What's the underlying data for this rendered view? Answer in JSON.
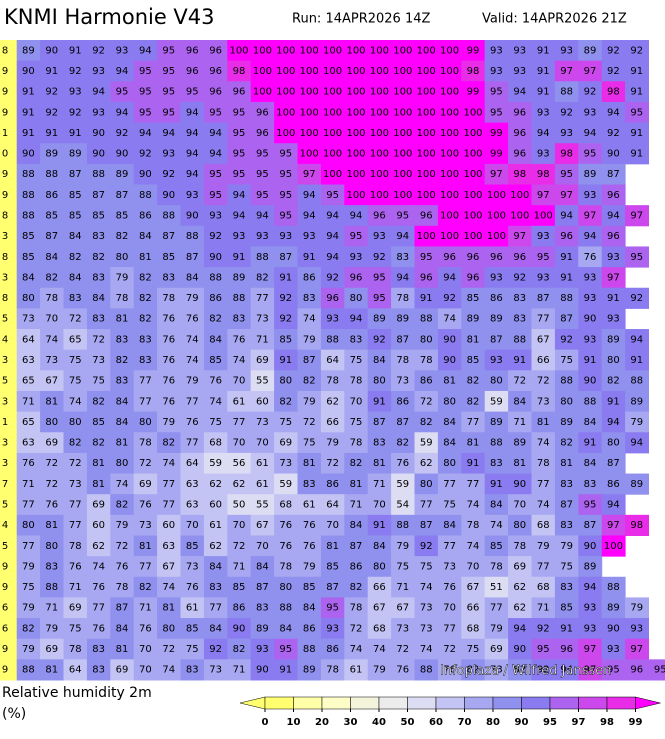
{
  "header": {
    "title": "KNMI Harmonie V43",
    "run": "Run: 14APR2026 14Z",
    "valid": "Valid: 14APR2026 21Z"
  },
  "grid": {
    "rows": [
      [
        8,
        89,
        90,
        91,
        92,
        93,
        94,
        95,
        96,
        96,
        100,
        100,
        100,
        100,
        100,
        100,
        100,
        100,
        100,
        100,
        99,
        93,
        93,
        91,
        93,
        89,
        92,
        92
      ],
      [
        9,
        90,
        91,
        92,
        93,
        94,
        95,
        95,
        96,
        96,
        98,
        100,
        100,
        100,
        100,
        100,
        100,
        100,
        100,
        100,
        98,
        93,
        93,
        91,
        97,
        97,
        92,
        91
      ],
      [
        9,
        91,
        92,
        93,
        94,
        95,
        95,
        95,
        95,
        96,
        96,
        100,
        100,
        100,
        100,
        100,
        100,
        100,
        100,
        100,
        99,
        95,
        94,
        91,
        88,
        92,
        98,
        91
      ],
      [
        9,
        91,
        92,
        92,
        93,
        94,
        95,
        95,
        94,
        95,
        95,
        96,
        100,
        100,
        100,
        100,
        100,
        100,
        100,
        100,
        100,
        95,
        96,
        93,
        92,
        93,
        94,
        95
      ],
      [
        1,
        91,
        91,
        91,
        90,
        92,
        94,
        94,
        94,
        94,
        95,
        96,
        100,
        100,
        100,
        100,
        100,
        100,
        100,
        100,
        100,
        99,
        96,
        94,
        93,
        94,
        92,
        91
      ],
      [
        0,
        90,
        89,
        89,
        90,
        90,
        92,
        93,
        94,
        94,
        95,
        95,
        95,
        100,
        100,
        100,
        100,
        100,
        100,
        100,
        100,
        99,
        96,
        93,
        98,
        95,
        90,
        91
      ],
      [
        9,
        88,
        88,
        87,
        88,
        89,
        90,
        92,
        94,
        95,
        95,
        95,
        95,
        97,
        100,
        100,
        100,
        100,
        100,
        100,
        100,
        97,
        98,
        98,
        95,
        89,
        87
      ],
      [
        9,
        88,
        86,
        85,
        87,
        87,
        88,
        90,
        93,
        95,
        94,
        95,
        95,
        94,
        95,
        100,
        100,
        100,
        100,
        100,
        100,
        100,
        100,
        97,
        97,
        93,
        96
      ],
      [
        8,
        88,
        85,
        85,
        85,
        85,
        86,
        88,
        90,
        93,
        94,
        94,
        95,
        94,
        94,
        94,
        96,
        95,
        96,
        100,
        100,
        100,
        100,
        100,
        94,
        97,
        94,
        97
      ],
      [
        3,
        85,
        87,
        84,
        83,
        82,
        84,
        87,
        88,
        92,
        93,
        93,
        93,
        93,
        94,
        95,
        93,
        94,
        100,
        100,
        100,
        100,
        97,
        93,
        96,
        94,
        96
      ],
      [
        8,
        85,
        84,
        82,
        82,
        80,
        81,
        85,
        87,
        90,
        91,
        88,
        87,
        91,
        94,
        93,
        92,
        83,
        95,
        96,
        96,
        96,
        96,
        95,
        91,
        76,
        93,
        95
      ],
      [
        3,
        84,
        82,
        84,
        83,
        79,
        82,
        83,
        84,
        88,
        89,
        82,
        91,
        86,
        92,
        96,
        95,
        94,
        96,
        94,
        96,
        93,
        92,
        93,
        91,
        93,
        97
      ],
      [
        8,
        80,
        78,
        83,
        84,
        78,
        82,
        78,
        79,
        86,
        88,
        77,
        92,
        83,
        96,
        80,
        95,
        78,
        91,
        92,
        85,
        86,
        83,
        87,
        88,
        93,
        91,
        92
      ],
      [
        5,
        73,
        70,
        72,
        83,
        81,
        82,
        76,
        76,
        82,
        83,
        73,
        92,
        74,
        93,
        94,
        89,
        89,
        88,
        74,
        89,
        89,
        83,
        77,
        87,
        90,
        93
      ],
      [
        4,
        64,
        74,
        65,
        72,
        83,
        83,
        76,
        74,
        84,
        76,
        71,
        85,
        79,
        88,
        83,
        92,
        87,
        80,
        90,
        81,
        87,
        88,
        67,
        92,
        93,
        89,
        94
      ],
      [
        3,
        63,
        73,
        75,
        73,
        82,
        83,
        76,
        74,
        85,
        74,
        69,
        91,
        87,
        64,
        75,
        84,
        78,
        78,
        90,
        85,
        93,
        91,
        66,
        75,
        91,
        80,
        91
      ],
      [
        5,
        65,
        67,
        75,
        75,
        83,
        77,
        76,
        79,
        76,
        70,
        55,
        80,
        82,
        78,
        78,
        80,
        73,
        86,
        81,
        82,
        80,
        72,
        72,
        88,
        90,
        82,
        88
      ],
      [
        3,
        71,
        81,
        74,
        82,
        84,
        77,
        76,
        77,
        74,
        61,
        60,
        82,
        79,
        62,
        70,
        91,
        86,
        72,
        80,
        82,
        59,
        84,
        73,
        80,
        88,
        91,
        89
      ],
      [
        1,
        65,
        80,
        80,
        85,
        84,
        80,
        79,
        76,
        75,
        77,
        73,
        75,
        72,
        66,
        75,
        87,
        87,
        82,
        84,
        77,
        89,
        71,
        81,
        89,
        84,
        94,
        79
      ],
      [
        3,
        63,
        69,
        82,
        82,
        81,
        78,
        82,
        77,
        68,
        70,
        70,
        69,
        75,
        79,
        78,
        83,
        82,
        59,
        84,
        81,
        88,
        89,
        74,
        82,
        91,
        80,
        94
      ],
      [
        3,
        76,
        72,
        72,
        81,
        80,
        72,
        74,
        64,
        59,
        56,
        61,
        73,
        81,
        72,
        82,
        81,
        76,
        62,
        80,
        91,
        83,
        81,
        78,
        81,
        84,
        87
      ],
      [
        7,
        71,
        72,
        73,
        81,
        74,
        69,
        77,
        63,
        62,
        62,
        61,
        59,
        83,
        86,
        81,
        71,
        59,
        80,
        77,
        77,
        91,
        90,
        77,
        83,
        83,
        86,
        89
      ],
      [
        5,
        77,
        76,
        77,
        69,
        82,
        76,
        77,
        63,
        60,
        50,
        55,
        68,
        61,
        64,
        71,
        70,
        54,
        77,
        75,
        74,
        84,
        70,
        74,
        87,
        95,
        94
      ],
      [
        4,
        80,
        81,
        77,
        60,
        79,
        73,
        60,
        70,
        61,
        70,
        67,
        76,
        76,
        70,
        84,
        91,
        88,
        87,
        84,
        78,
        74,
        80,
        68,
        83,
        87,
        97,
        98
      ],
      [
        5,
        77,
        80,
        78,
        62,
        72,
        81,
        63,
        85,
        62,
        72,
        70,
        76,
        76,
        81,
        87,
        84,
        79,
        92,
        77,
        74,
        85,
        78,
        79,
        79,
        90,
        100
      ],
      [
        9,
        79,
        83,
        76,
        74,
        76,
        77,
        67,
        73,
        84,
        71,
        84,
        78,
        79,
        85,
        86,
        80,
        75,
        75,
        73,
        70,
        78,
        69,
        77,
        75,
        89
      ],
      [
        9,
        75,
        88,
        71,
        76,
        78,
        82,
        74,
        76,
        83,
        85,
        87,
        80,
        85,
        87,
        82,
        66,
        71,
        74,
        76,
        67,
        51,
        62,
        68,
        83,
        94,
        88
      ],
      [
        6,
        79,
        71,
        69,
        77,
        87,
        71,
        81,
        61,
        77,
        86,
        83,
        88,
        84,
        95,
        78,
        67,
        67,
        73,
        70,
        66,
        77,
        62,
        71,
        85,
        93,
        89,
        79
      ],
      [
        6,
        82,
        79,
        75,
        76,
        84,
        76,
        80,
        85,
        84,
        90,
        89,
        84,
        86,
        93,
        72,
        68,
        73,
        73,
        77,
        68,
        79,
        94,
        92,
        91,
        93,
        90,
        93
      ],
      [
        9,
        79,
        69,
        78,
        83,
        81,
        70,
        72,
        75,
        92,
        82,
        93,
        95,
        88,
        86,
        74,
        74,
        72,
        74,
        72,
        75,
        69,
        90,
        95,
        96,
        97,
        93,
        97
      ],
      [
        9,
        88,
        81,
        64,
        83,
        69,
        70,
        74,
        83,
        73,
        71,
        90,
        91,
        89,
        78,
        61,
        79,
        76,
        88,
        76,
        82,
        73,
        82,
        92,
        94,
        97,
        95,
        96,
        95
      ]
    ],
    "credit": "Infoplaza / Wilfred Janssen"
  },
  "legend": {
    "title": "Relative humidity 2m",
    "unit": "(%)",
    "ticks": [
      0,
      10,
      20,
      30,
      40,
      50,
      60,
      70,
      80,
      90,
      95,
      97,
      98,
      99
    ],
    "colors": [
      "#ffff70",
      "#ffffa8",
      "#fdfdc8",
      "#f4f4dc",
      "#ececec",
      "#dcdcf2",
      "#c4c4f4",
      "#a8a8f2",
      "#9090ee",
      "#8a7cf0",
      "#ac64f0",
      "#cc48ec",
      "#e82ce8",
      "#ff00ff"
    ]
  }
}
